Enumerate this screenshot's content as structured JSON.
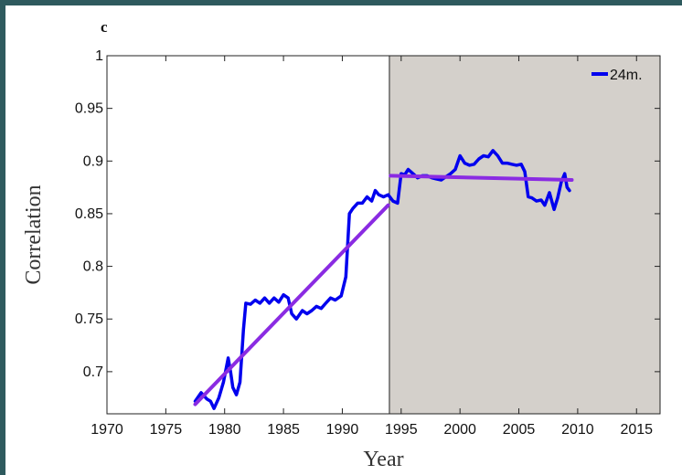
{
  "panel_label": "c",
  "chart_data": {
    "type": "line",
    "xlabel": "Year",
    "ylabel": "Correlation",
    "xlim": [
      1970,
      2017
    ],
    "ylim": [
      0.66,
      1.0
    ],
    "xticks": [
      1970,
      1975,
      1980,
      1985,
      1990,
      1995,
      2000,
      2005,
      2010,
      2015
    ],
    "yticks": [
      0.7,
      0.75,
      0.8,
      0.85,
      0.9,
      0.95,
      1
    ],
    "ytick_labels": [
      "0.7",
      "0.75",
      "0.8",
      "0.85",
      "0.9",
      "0.95",
      "1"
    ],
    "shaded_region": {
      "x": [
        1994,
        2017
      ],
      "color": "#d4d0cb"
    },
    "legend": {
      "position": "top-right",
      "entries": [
        "24m."
      ]
    },
    "series": [
      {
        "name": "24m.",
        "color": "#0000ee",
        "x": [
          1977.5,
          1978,
          1978.5,
          1978.8,
          1979.1,
          1979.5,
          1979.9,
          1980.3,
          1980.5,
          1980.7,
          1981.0,
          1981.3,
          1981.6,
          1981.8,
          1982.2,
          1982.6,
          1983.0,
          1983.4,
          1983.8,
          1984.2,
          1984.6,
          1985.0,
          1985.4,
          1985.7,
          1986.1,
          1986.6,
          1987.0,
          1987.4,
          1987.8,
          1988.2,
          1988.6,
          1989.0,
          1989.4,
          1989.9,
          1990.3,
          1990.6,
          1990.9,
          1991.3,
          1991.7,
          1992.1,
          1992.5,
          1992.8,
          1993.1,
          1993.5,
          1993.9,
          1994.3,
          1994.7,
          1995.0,
          1995.3,
          1995.6,
          1996.0,
          1996.4,
          1996.8,
          1997.2,
          1997.6,
          1998.0,
          1998.4,
          1998.8,
          1999.2,
          1999.6,
          2000.0,
          2000.4,
          2000.8,
          2001.2,
          2001.6,
          2002.0,
          2002.4,
          2002.8,
          2003.2,
          2003.6,
          2004.0,
          2004.4,
          2004.8,
          2005.2,
          2005.5,
          2005.8,
          2006.1,
          2006.5,
          2006.9,
          2007.2,
          2007.6,
          2008.0,
          2008.3,
          2008.6,
          2008.9,
          2009.1,
          2009.3
        ],
        "values": [
          0.672,
          0.68,
          0.674,
          0.672,
          0.665,
          0.675,
          0.69,
          0.713,
          0.7,
          0.685,
          0.678,
          0.69,
          0.74,
          0.765,
          0.764,
          0.768,
          0.765,
          0.77,
          0.765,
          0.77,
          0.766,
          0.773,
          0.77,
          0.755,
          0.75,
          0.758,
          0.755,
          0.758,
          0.762,
          0.76,
          0.765,
          0.77,
          0.768,
          0.772,
          0.79,
          0.85,
          0.855,
          0.86,
          0.86,
          0.866,
          0.862,
          0.872,
          0.868,
          0.866,
          0.868,
          0.862,
          0.86,
          0.888,
          0.887,
          0.892,
          0.888,
          0.884,
          0.886,
          0.886,
          0.884,
          0.883,
          0.882,
          0.885,
          0.888,
          0.892,
          0.905,
          0.898,
          0.896,
          0.897,
          0.902,
          0.905,
          0.904,
          0.91,
          0.905,
          0.898,
          0.898,
          0.897,
          0.896,
          0.897,
          0.89,
          0.866,
          0.865,
          0.862,
          0.863,
          0.858,
          0.87,
          0.854,
          0.865,
          0.88,
          0.888,
          0.875,
          0.872
        ]
      },
      {
        "color": "#8a2be2",
        "x": [
          1977.5,
          1993.9
        ],
        "values": [
          0.669,
          0.858
        ]
      },
      {
        "color": "#8a2be2",
        "x": [
          1994.1,
          2009.5
        ],
        "values": [
          0.886,
          0.882
        ]
      }
    ]
  }
}
